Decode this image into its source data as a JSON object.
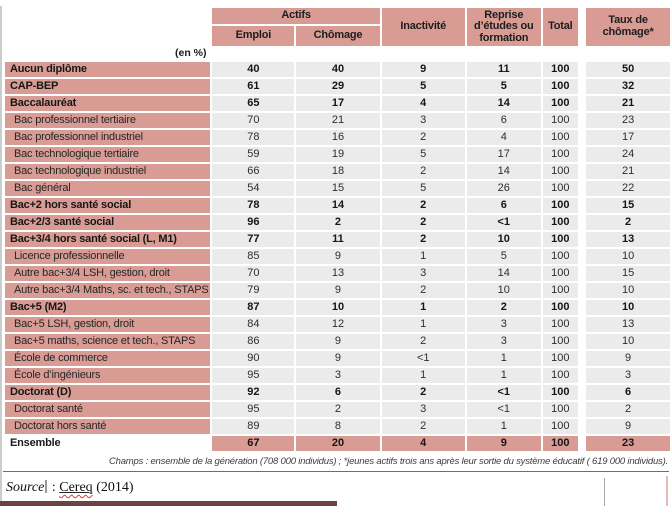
{
  "colors": {
    "pink": "#d99c95",
    "cell_gray": "#ebebeb",
    "bottom_bar": "#6b4341",
    "squiggle_red": "#e03c31"
  },
  "table": {
    "unit_label": "(en %)",
    "header": {
      "actifs": "Actifs",
      "emploi": "Emploi",
      "chomage": "Chômage",
      "inactivite": "Inactivité",
      "reprise": "Reprise d’études ou formation",
      "total": "Total",
      "taux": "Taux de chômage*"
    },
    "columns": [
      "Emploi",
      "Chômage",
      "Inactivité",
      "Reprise d’études ou formation",
      "Total",
      "Taux de chômage*"
    ],
    "rows": [
      {
        "label": "Aucun diplôme",
        "style": "group",
        "values": [
          "40",
          "40",
          "9",
          "11",
          "100",
          "50"
        ]
      },
      {
        "label": "CAP-BEP",
        "style": "group",
        "values": [
          "61",
          "29",
          "5",
          "5",
          "100",
          "32"
        ]
      },
      {
        "label": "Baccalauréat",
        "style": "group",
        "values": [
          "65",
          "17",
          "4",
          "14",
          "100",
          "21"
        ]
      },
      {
        "label": "Bac professionnel tertiaire",
        "style": "sub",
        "values": [
          "70",
          "21",
          "3",
          "6",
          "100",
          "23"
        ]
      },
      {
        "label": "Bac professionnel industriel",
        "style": "sub",
        "values": [
          "78",
          "16",
          "2",
          "4",
          "100",
          "17"
        ]
      },
      {
        "label": "Bac technologique tertiaire",
        "style": "sub",
        "values": [
          "59",
          "19",
          "5",
          "17",
          "100",
          "24"
        ]
      },
      {
        "label": "Bac technologique industriel",
        "style": "sub",
        "values": [
          "66",
          "18",
          "2",
          "14",
          "100",
          "21"
        ]
      },
      {
        "label": "Bac général",
        "style": "sub",
        "values": [
          "54",
          "15",
          "5",
          "26",
          "100",
          "22"
        ]
      },
      {
        "label": "Bac+2 hors santé social",
        "style": "group",
        "values": [
          "78",
          "14",
          "2",
          "6",
          "100",
          "15"
        ]
      },
      {
        "label": "Bac+2/3 santé social",
        "style": "group",
        "values": [
          "96",
          "2",
          "2",
          "<1",
          "100",
          "2"
        ]
      },
      {
        "label": "Bac+3/4 hors santé social (L, M1)",
        "style": "group",
        "values": [
          "77",
          "11",
          "2",
          "10",
          "100",
          "13"
        ]
      },
      {
        "label": "Licence professionnelle",
        "style": "sub",
        "values": [
          "85",
          "9",
          "1",
          "5",
          "100",
          "10"
        ]
      },
      {
        "label": "Autre bac+3/4 LSH, gestion, droit",
        "style": "sub",
        "values": [
          "70",
          "13",
          "3",
          "14",
          "100",
          "15"
        ]
      },
      {
        "label": "Autre bac+3/4 Maths, sc. et tech., STAPS",
        "style": "sub",
        "values": [
          "79",
          "9",
          "2",
          "10",
          "100",
          "10"
        ]
      },
      {
        "label": "Bac+5 (M2)",
        "style": "group",
        "values": [
          "87",
          "10",
          "1",
          "2",
          "100",
          "10"
        ]
      },
      {
        "label": "Bac+5 LSH, gestion, droit",
        "style": "sub",
        "values": [
          "84",
          "12",
          "1",
          "3",
          "100",
          "13"
        ]
      },
      {
        "label": "Bac+5 maths, science et tech., STAPS",
        "style": "sub",
        "values": [
          "86",
          "9",
          "2",
          "3",
          "100",
          "10"
        ]
      },
      {
        "label": "École de commerce",
        "style": "sub",
        "values": [
          "90",
          "9",
          "<1",
          "1",
          "100",
          "9"
        ]
      },
      {
        "label": "École d’ingénieurs",
        "style": "sub",
        "values": [
          "95",
          "3",
          "1",
          "1",
          "100",
          "3"
        ]
      },
      {
        "label": "Doctorat (D)",
        "style": "group",
        "values": [
          "92",
          "6",
          "2",
          "<1",
          "100",
          "6"
        ]
      },
      {
        "label": "Doctorat santé",
        "style": "sub",
        "values": [
          "95",
          "2",
          "3",
          "<1",
          "100",
          "2"
        ]
      },
      {
        "label": "Doctorat hors santé",
        "style": "sub",
        "values": [
          "89",
          "8",
          "2",
          "1",
          "100",
          "9"
        ]
      },
      {
        "label": "Ensemble",
        "style": "ensemble",
        "values": [
          "67",
          "20",
          "4",
          "9",
          "100",
          "23"
        ]
      }
    ],
    "footnote": "Champs : ensemble de la génération (708 000 individus) ; *jeunes actifs trois ans après leur sortie du système éducatif ( 619 000 individus)."
  },
  "source": {
    "label": "Source",
    "separator": " : ",
    "org": "Cereq",
    "year": " (2014)"
  }
}
